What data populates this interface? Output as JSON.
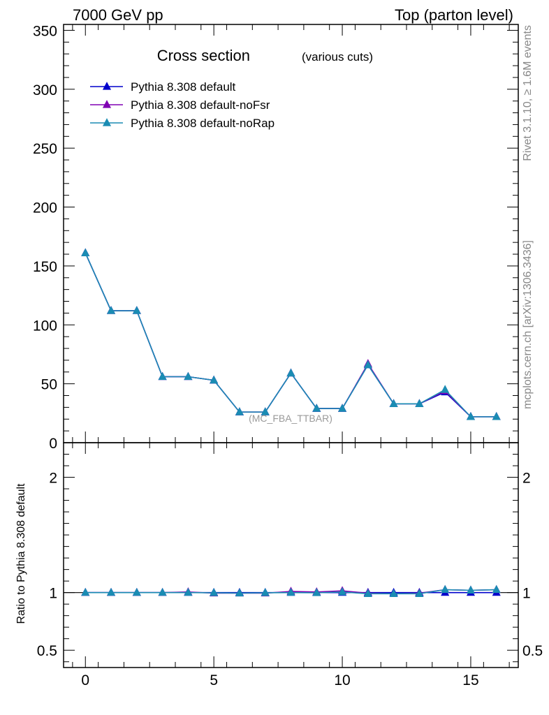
{
  "header": {
    "left": "7000 GeV pp",
    "right": "Top (parton level)"
  },
  "side_labels": {
    "rivet": "Rivet 3.1.10, ≥ 1.6M events",
    "mcplots": "mcplots.cern.ch [arXiv:1306.3436]"
  },
  "chart_data": [
    {
      "type": "line",
      "title": "Cross section",
      "subtitle": "(various cuts)",
      "annotation": "(MC_FBA_TTBAR)",
      "xlim": [
        -0.85,
        16.85
      ],
      "ylim": [
        0,
        355
      ],
      "y_ticks": [
        0,
        50,
        100,
        150,
        200,
        250,
        300,
        350
      ],
      "x_ticks": [
        0,
        5,
        10,
        15
      ],
      "legend_position": "top-left",
      "x": [
        0,
        1,
        2,
        3,
        4,
        5,
        6,
        7,
        8,
        9,
        10,
        11,
        12,
        13,
        14,
        15,
        16
      ],
      "series": [
        {
          "name": "Pythia 8.308 default",
          "color": "#0000cc",
          "values": [
            161,
            112,
            112,
            56,
            56,
            53,
            26,
            26,
            59,
            29,
            29,
            66,
            33,
            33,
            43,
            22,
            22
          ]
        },
        {
          "name": "Pythia 8.308 default-noFsr",
          "color": "#8000b3",
          "values": [
            161,
            112,
            112,
            56,
            56,
            53,
            26,
            26,
            59,
            29,
            29,
            67,
            33,
            33,
            44,
            22,
            22
          ]
        },
        {
          "name": "Pythia 8.308 default-noRap",
          "color": "#1a8cb3",
          "values": [
            161,
            112,
            112,
            56,
            56,
            53,
            26,
            26,
            59,
            29,
            29,
            66,
            33,
            33,
            45,
            22,
            22
          ]
        }
      ]
    },
    {
      "type": "line",
      "ylabel": "Ratio to Pythia 8.308 default",
      "xlim": [
        -0.85,
        16.85
      ],
      "ylim": [
        0.35,
        2.3
      ],
      "y_ticks": [
        0.5,
        1,
        2
      ],
      "y_tick_labels": [
        "0.5",
        "1",
        "2"
      ],
      "x_ticks": [
        0,
        5,
        10,
        15
      ],
      "x": [
        0,
        1,
        2,
        3,
        4,
        5,
        6,
        7,
        8,
        9,
        10,
        11,
        12,
        13,
        14,
        15,
        16
      ],
      "series": [
        {
          "name": "Pythia 8.308 default",
          "color": "#0000cc",
          "values": [
            1,
            1,
            1,
            1,
            1,
            1,
            1,
            1,
            1,
            1,
            1,
            1,
            1,
            1,
            1,
            1,
            1
          ]
        },
        {
          "name": "Pythia 8.308 default-noFsr",
          "color": "#8000b3",
          "values": [
            1.0,
            1.0,
            1.0,
            1.0,
            1.005,
            0.995,
            0.995,
            0.995,
            1.01,
            1.005,
            1.015,
            0.995,
            0.99,
            0.995,
            1.025,
            1.02,
            1.025
          ]
        },
        {
          "name": "Pythia 8.308 default-noRap",
          "color": "#1a8cb3",
          "values": [
            1.0,
            1.0,
            1.0,
            1.0,
            1.0,
            0.998,
            0.995,
            0.998,
            1.0,
            0.998,
            1.005,
            0.99,
            0.99,
            0.99,
            1.025,
            1.02,
            1.025
          ]
        }
      ]
    }
  ]
}
